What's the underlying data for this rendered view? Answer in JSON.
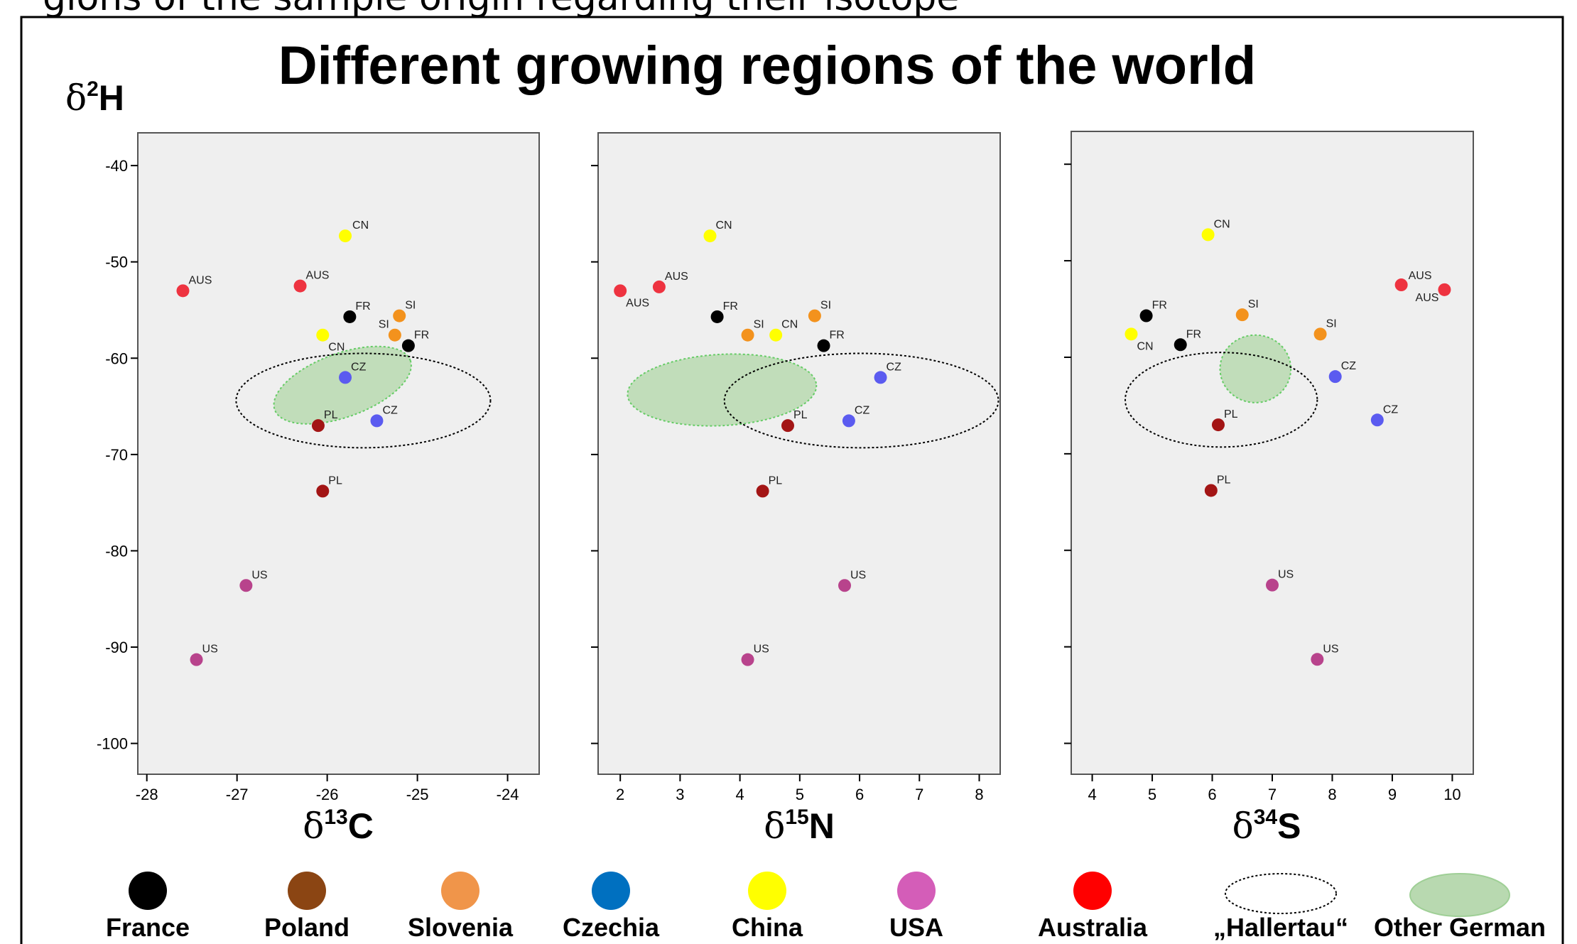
{
  "header_text": "gions of the sample origin regarding their isotope",
  "title": "Different growing regions of the world",
  "y_axis_label": {
    "base": "δ",
    "sup": "2",
    "elem": "H"
  },
  "legend": {
    "items": [
      {
        "label": "France",
        "color": "#000000",
        "kind": "dot"
      },
      {
        "label": "Poland",
        "color": "#8B4513",
        "kind": "dot"
      },
      {
        "label": "Slovenia",
        "color": "#F0954A",
        "kind": "dot"
      },
      {
        "label": "Czechia",
        "color": "#0070C0",
        "kind": "dot"
      },
      {
        "label": "China",
        "color": "#FFFF00",
        "kind": "dot"
      },
      {
        "label": "USA",
        "color": "#D45DB8",
        "kind": "dot"
      },
      {
        "label": "Australia",
        "color": "#FF0000",
        "kind": "dot"
      },
      {
        "label": "„Hallertau“",
        "color": "#000000",
        "kind": "dashed-ellipse"
      },
      {
        "label": "Other German",
        "color": "#B8D9B0",
        "kind": "filled-ellipse"
      }
    ]
  },
  "colors": {
    "France": "#000000",
    "Poland": "#A31515",
    "Slovenia": "#F3921D",
    "Czechia": "#5B5BF0",
    "China": "#FFFF00",
    "USA": "#B8438C",
    "Australia": "#EE3340",
    "panel_bg": "#EFEFEF",
    "other_german_fill": "#B8D9B0",
    "other_german_stroke": "#66CC66"
  },
  "chart_data": [
    {
      "type": "scatter",
      "xlabel": {
        "base": "δ",
        "sup": "13",
        "elem": "C"
      },
      "ylabel": "δ2H",
      "xlim": [
        -28.1,
        -23.65
      ],
      "ylim": [
        -103.2,
        -36.6
      ],
      "xticks": [
        -28,
        -27,
        -26,
        -25,
        -24
      ],
      "yticks": [
        -40,
        -50,
        -60,
        -70,
        -80,
        -90,
        -100
      ],
      "points": [
        {
          "label": "CN",
          "group": "China",
          "x": -25.8,
          "y": -47.3
        },
        {
          "label": "AUS",
          "group": "Australia",
          "x": -27.6,
          "y": -53.0
        },
        {
          "label": "AUS",
          "group": "Australia",
          "x": -26.3,
          "y": -52.5
        },
        {
          "label": "FR",
          "group": "France",
          "x": -25.75,
          "y": -55.7
        },
        {
          "label": "SI",
          "group": "Slovenia",
          "x": -25.2,
          "y": -55.6
        },
        {
          "label": "SI",
          "group": "Slovenia",
          "x": -25.25,
          "y": -57.6
        },
        {
          "label": "FR",
          "group": "France",
          "x": -25.1,
          "y": -58.7
        },
        {
          "label": "CN",
          "group": "China",
          "x": -26.05,
          "y": -57.6
        },
        {
          "label": "CZ",
          "group": "Czechia",
          "x": -25.8,
          "y": -62.0
        },
        {
          "label": "CZ",
          "group": "Czechia",
          "x": -25.45,
          "y": -66.5
        },
        {
          "label": "PL",
          "group": "Poland",
          "x": -26.1,
          "y": -67.0
        },
        {
          "label": "PL",
          "group": "Poland",
          "x": -26.05,
          "y": -73.8
        },
        {
          "label": "US",
          "group": "USA",
          "x": -26.9,
          "y": -83.6
        },
        {
          "label": "US",
          "group": "USA",
          "x": -27.45,
          "y": -91.3
        }
      ],
      "hallertau_ellipse": {
        "cx": -25.6,
        "cy": -64.4,
        "rx": 1.41,
        "ry": 4.9
      },
      "other_german_ellipse": {
        "cx": -25.83,
        "cy": -62.8,
        "rx": 0.8,
        "ry": 3.3,
        "angle": -20
      }
    },
    {
      "type": "scatter",
      "xlabel": {
        "base": "δ",
        "sup": "15",
        "elem": "N"
      },
      "ylabel": "δ2H",
      "xlim": [
        1.63,
        8.35
      ],
      "ylim": [
        -103.2,
        -36.6
      ],
      "xticks": [
        2,
        3,
        4,
        5,
        6,
        7,
        8
      ],
      "yticks": [
        -40,
        -50,
        -60,
        -70,
        -80,
        -90,
        -100
      ],
      "points": [
        {
          "label": "CN",
          "group": "China",
          "x": 3.5,
          "y": -47.3
        },
        {
          "label": "AUS",
          "group": "Australia",
          "x": 2.0,
          "y": -53.0
        },
        {
          "label": "AUS",
          "group": "Australia",
          "x": 2.65,
          "y": -52.6
        },
        {
          "label": "FR",
          "group": "France",
          "x": 3.62,
          "y": -55.7
        },
        {
          "label": "SI",
          "group": "Slovenia",
          "x": 5.25,
          "y": -55.6
        },
        {
          "label": "SI",
          "group": "Slovenia",
          "x": 4.13,
          "y": -57.6
        },
        {
          "label": "CN",
          "group": "China",
          "x": 4.6,
          "y": -57.6
        },
        {
          "label": "FR",
          "group": "France",
          "x": 5.4,
          "y": -58.7
        },
        {
          "label": "CZ",
          "group": "Czechia",
          "x": 6.35,
          "y": -62.0
        },
        {
          "label": "CZ",
          "group": "Czechia",
          "x": 5.82,
          "y": -66.5
        },
        {
          "label": "PL",
          "group": "Poland",
          "x": 4.8,
          "y": -67.0
        },
        {
          "label": "PL",
          "group": "Poland",
          "x": 4.38,
          "y": -73.8
        },
        {
          "label": "US",
          "group": "USA",
          "x": 5.75,
          "y": -83.6
        },
        {
          "label": "US",
          "group": "USA",
          "x": 4.13,
          "y": -91.3
        }
      ],
      "hallertau_ellipse": {
        "cx": 6.03,
        "cy": -64.4,
        "rx": 2.29,
        "ry": 4.9
      },
      "other_german_ellipse": {
        "cx": 3.7,
        "cy": -63.3,
        "rx": 1.58,
        "ry": 3.7,
        "angle": -3
      }
    },
    {
      "type": "scatter",
      "xlabel": {
        "base": "δ",
        "sup": "34",
        "elem": "S"
      },
      "ylabel": "δ2H",
      "xlim": [
        3.65,
        10.35
      ],
      "ylim": [
        -103.2,
        -36.6
      ],
      "xticks": [
        4,
        5,
        6,
        7,
        8,
        9,
        10
      ],
      "yticks": [
        -40,
        -50,
        -60,
        -70,
        -80,
        -90,
        -100
      ],
      "points": [
        {
          "label": "CN",
          "group": "China",
          "x": 5.93,
          "y": -47.3
        },
        {
          "label": "AUS",
          "group": "Australia",
          "x": 9.15,
          "y": -52.5
        },
        {
          "label": "AUS",
          "group": "Australia",
          "x": 9.87,
          "y": -53.0
        },
        {
          "label": "FR",
          "group": "France",
          "x": 4.9,
          "y": -55.7
        },
        {
          "label": "SI",
          "group": "Slovenia",
          "x": 6.5,
          "y": -55.6
        },
        {
          "label": "CN",
          "group": "China",
          "x": 4.65,
          "y": -57.6
        },
        {
          "label": "SI",
          "group": "Slovenia",
          "x": 7.8,
          "y": -57.6
        },
        {
          "label": "FR",
          "group": "France",
          "x": 5.47,
          "y": -58.7
        },
        {
          "label": "CZ",
          "group": "Czechia",
          "x": 8.05,
          "y": -62.0
        },
        {
          "label": "CZ",
          "group": "Czechia",
          "x": 8.75,
          "y": -66.5
        },
        {
          "label": "PL",
          "group": "Poland",
          "x": 6.1,
          "y": -67.0
        },
        {
          "label": "PL",
          "group": "Poland",
          "x": 5.98,
          "y": -73.8
        },
        {
          "label": "US",
          "group": "USA",
          "x": 7.0,
          "y": -83.6
        },
        {
          "label": "US",
          "group": "USA",
          "x": 7.75,
          "y": -91.3
        }
      ],
      "hallertau_ellipse": {
        "cx": 6.15,
        "cy": -64.4,
        "rx": 1.6,
        "ry": 4.9
      },
      "other_german_ellipse": {
        "cx": 6.72,
        "cy": -61.2,
        "rx": 0.59,
        "ry": 3.5,
        "angle": 0
      }
    }
  ]
}
